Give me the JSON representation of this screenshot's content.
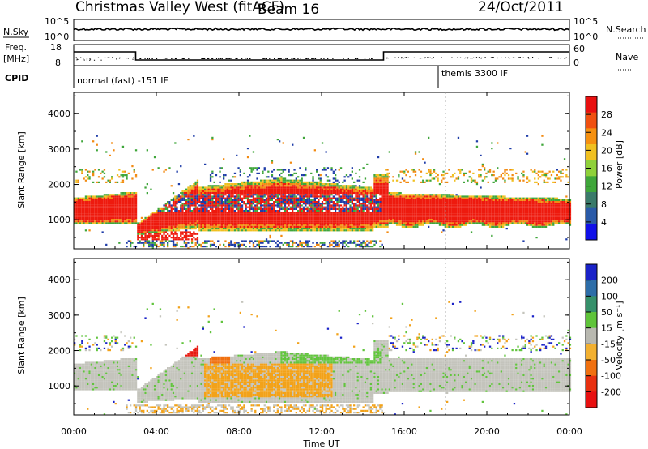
{
  "header": {
    "title": "Christmas Valley West (fitACF)",
    "beam": "Beam 16",
    "date": "24/Oct/2011"
  },
  "panels": {
    "nsky_label": "N.Sky",
    "nsky_ticks": [
      "10^5",
      "10^0"
    ],
    "nsearch_label": "N.Search",
    "nsearch_ticks": [
      "10^5",
      "10^0"
    ],
    "freq_label": "Freq.",
    "freq_unit": "[MHz]",
    "freq_ticks": [
      "18",
      "8"
    ],
    "nave_label": "Nave",
    "nave_ticks": [
      "60",
      "0"
    ],
    "cpid_label": "CPID",
    "cpid_modes": [
      {
        "label": "normal (fast) -151 IF",
        "start_hour": 0
      },
      {
        "label": "themis 3300 IF",
        "start_hour": 18
      }
    ]
  },
  "chart_data": [
    {
      "type": "heatmap",
      "name": "power",
      "ylabel": "Slant Range [km]",
      "ylim": [
        180,
        4600
      ],
      "yticks": [
        1000,
        2000,
        3000,
        4000
      ],
      "xlim": [
        0,
        24
      ],
      "colorbar_label": "Power [dB]",
      "colorbar_ticks": [
        "4",
        "8",
        "12",
        "16",
        "20",
        "24",
        "28"
      ],
      "colorbar_colors": [
        "#1010e8",
        "#2a5aa8",
        "#3a7a6a",
        "#3fa63a",
        "#8fd13a",
        "#f0c020",
        "#f59010",
        "#f05010",
        "#e81010"
      ]
    },
    {
      "type": "heatmap",
      "name": "velocity",
      "ylabel": "Slant Range [km]",
      "ylim": [
        180,
        4600
      ],
      "yticks": [
        1000,
        2000,
        3000,
        4000
      ],
      "xlim": [
        0,
        24
      ],
      "colorbar_label": "Velocity [m s⁻¹]",
      "colorbar_ticks": [
        "200",
        "100",
        "50",
        "15",
        "-15",
        "-50",
        "-100",
        "-200"
      ],
      "colorbar_colors": [
        "#1a22c8",
        "#2d6da8",
        "#36906a",
        "#5fc43a",
        "#b8b8b0",
        "#f2b030",
        "#f07010",
        "#e83010",
        "#e81010"
      ]
    }
  ],
  "xaxis": {
    "ticks": [
      "00:00",
      "04:00",
      "08:00",
      "12:00",
      "16:00",
      "20:00",
      "00:00"
    ],
    "label": "Time UT"
  },
  "colors": {
    "power_red": "#ee1a0e",
    "power_orange": "#f28a12",
    "power_yellow": "#f0c020",
    "power_green": "#3fa63a",
    "power_blue": "#1e3ca8",
    "vel_grey": "#c4c4bc",
    "vel_orange": "#f2a21a",
    "vel_green": "#62c43e",
    "vel_red": "#e81a10"
  }
}
